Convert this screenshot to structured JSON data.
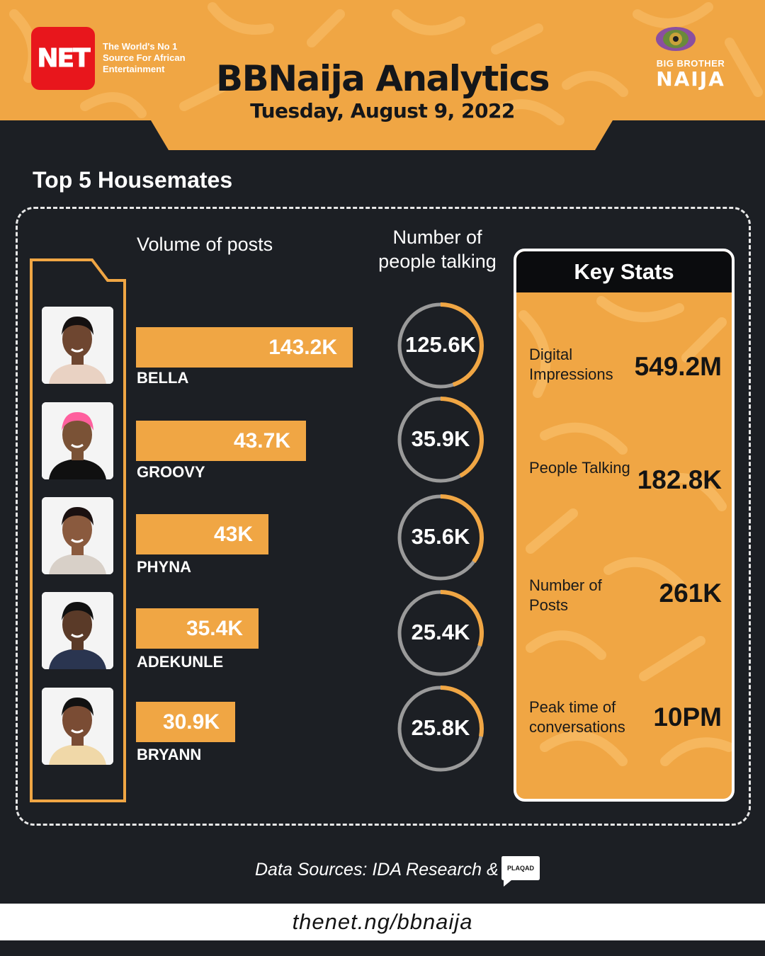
{
  "header": {
    "brand_logo_text": "NET",
    "brand_tagline": "The World's No 1 Source For African Entertainment",
    "title": "BBNaija Analytics",
    "date": "Tuesday, August 9, 2022",
    "show_logo_line1": "BIG BROTHER",
    "show_logo_line2": "NAIJA"
  },
  "section_title": "Top 5 Housemates",
  "colors": {
    "orange": "#f0a644",
    "dark": "#1c1f24",
    "ring_grey": "#9a9a9a",
    "black": "#0b0c0e"
  },
  "chart_data": {
    "type": "bar",
    "categories": [
      "BELLA",
      "GROOVY",
      "PHYNA",
      "ADEKUNLE",
      "BRYANN"
    ],
    "series": [
      {
        "name": "Volume of posts",
        "values": [
          143.2,
          43.7,
          43,
          35.4,
          30.9
        ],
        "labels": [
          "143.2K",
          "43.7K",
          "43K",
          "35.4K",
          "30.9K"
        ],
        "unit": "K"
      },
      {
        "name": "Number of people talking",
        "values": [
          125.6,
          35.9,
          35.6,
          25.4,
          25.8
        ],
        "labels": [
          "125.6K",
          "35.9K",
          "35.6K",
          "25.4K",
          "25.8K"
        ],
        "unit": "K"
      }
    ],
    "col_heading_posts": "Volume of posts",
    "col_heading_people": "Number of people talking"
  },
  "key_stats": {
    "title": "Key Stats",
    "items": [
      {
        "label": "Digital Impressions",
        "value": "549.2M"
      },
      {
        "label": "People Talking",
        "value": "182.8K"
      },
      {
        "label": "Number of Posts",
        "value": "261K"
      },
      {
        "label": "Peak time of conversations",
        "value": "10PM"
      }
    ]
  },
  "sources_text": "Data Sources: IDA Research &",
  "sources_logo_text": "PLAQAD",
  "footer_url": "thenet.ng/bbnaija"
}
